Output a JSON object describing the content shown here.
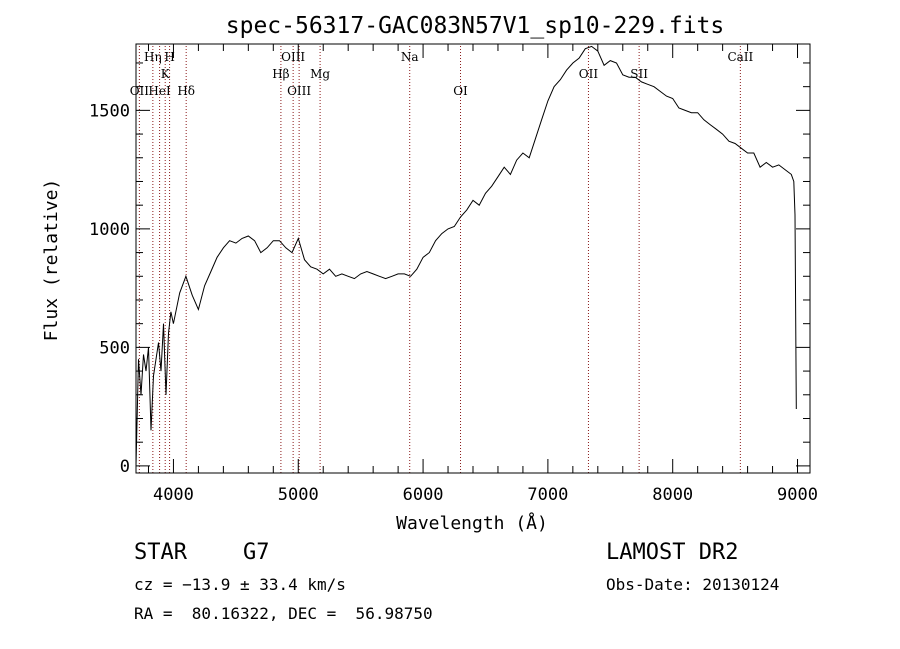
{
  "chart_data": {
    "type": "line",
    "title": "spec-56317-GAC083N57V1_sp10-229.fits",
    "xlabel": "Wavelength (Å)",
    "ylabel": "Flux (relative)",
    "xlim": [
      3700,
      9100
    ],
    "ylim": [
      -30,
      1780
    ],
    "x_ticks": [
      4000,
      5000,
      6000,
      7000,
      8000,
      9000
    ],
    "y_ticks": [
      0,
      500,
      1000,
      1500
    ],
    "grid": false,
    "legend": "none",
    "series": [
      {
        "color": "#000000",
        "x": [
          3700,
          3720,
          3740,
          3760,
          3780,
          3800,
          3820,
          3840,
          3860,
          3880,
          3900,
          3920,
          3940,
          3960,
          3980,
          4000,
          4050,
          4100,
          4150,
          4200,
          4250,
          4300,
          4350,
          4400,
          4450,
          4500,
          4550,
          4600,
          4650,
          4700,
          4750,
          4800,
          4850,
          4900,
          4950,
          5000,
          5050,
          5100,
          5150,
          5200,
          5250,
          5300,
          5350,
          5400,
          5450,
          5500,
          5550,
          5600,
          5650,
          5700,
          5750,
          5800,
          5850,
          5900,
          5950,
          6000,
          6050,
          6100,
          6150,
          6200,
          6250,
          6300,
          6350,
          6400,
          6450,
          6500,
          6550,
          6600,
          6650,
          6700,
          6750,
          6800,
          6850,
          6900,
          6950,
          7000,
          7050,
          7100,
          7150,
          7200,
          7250,
          7300,
          7350,
          7400,
          7450,
          7500,
          7550,
          7600,
          7650,
          7700,
          7750,
          7800,
          7850,
          7900,
          7950,
          8000,
          8050,
          8100,
          8150,
          8200,
          8250,
          8300,
          8350,
          8400,
          8450,
          8500,
          8550,
          8600,
          8650,
          8700,
          8750,
          8800,
          8850,
          8900,
          8950,
          8970,
          8980,
          8990
        ],
        "y": [
          0,
          450,
          300,
          470,
          400,
          500,
          150,
          380,
          450,
          520,
          400,
          600,
          300,
          560,
          650,
          600,
          730,
          800,
          720,
          660,
          760,
          820,
          880,
          920,
          950,
          940,
          960,
          970,
          950,
          900,
          920,
          950,
          950,
          920,
          900,
          960,
          870,
          840,
          830,
          810,
          830,
          800,
          810,
          800,
          790,
          810,
          820,
          810,
          800,
          790,
          800,
          810,
          810,
          800,
          830,
          880,
          900,
          950,
          980,
          1000,
          1010,
          1050,
          1080,
          1120,
          1100,
          1150,
          1180,
          1220,
          1260,
          1230,
          1290,
          1320,
          1300,
          1380,
          1460,
          1540,
          1600,
          1630,
          1670,
          1700,
          1720,
          1760,
          1770,
          1750,
          1690,
          1710,
          1700,
          1650,
          1640,
          1640,
          1620,
          1610,
          1600,
          1580,
          1560,
          1550,
          1510,
          1500,
          1490,
          1490,
          1460,
          1440,
          1420,
          1400,
          1370,
          1360,
          1340,
          1320,
          1320,
          1260,
          1280,
          1260,
          1270,
          1250,
          1230,
          1200,
          1060,
          240
        ]
      }
    ],
    "lines": [
      {
        "label": "OII",
        "wave": 3727,
        "row": 3
      },
      {
        "label": "Hη",
        "wave": 3835,
        "row": 1
      },
      {
        "label": "HeI",
        "wave": 3889,
        "row": 3
      },
      {
        "label": "K",
        "wave": 3934,
        "row": 2
      },
      {
        "label": "H",
        "wave": 3969,
        "row": 1
      },
      {
        "label": "Hδ",
        "wave": 4102,
        "row": 3
      },
      {
        "label": "Hβ",
        "wave": 4861,
        "row": 2
      },
      {
        "label": "OIII",
        "wave": 4959,
        "row": 1
      },
      {
        "label": "OIII",
        "wave": 5007,
        "row": 3
      },
      {
        "label": "Mg",
        "wave": 5175,
        "row": 2
      },
      {
        "label": "Na",
        "wave": 5893,
        "row": 1
      },
      {
        "label": "OI",
        "wave": 6300,
        "row": 3
      },
      {
        "label": "OII",
        "wave": 7325,
        "row": 2
      },
      {
        "label": "SII",
        "wave": 7731,
        "row": 2
      },
      {
        "label": "CaII",
        "wave": 8542,
        "row": 1
      }
    ]
  },
  "info": {
    "object_class": "STAR",
    "subclass": "G7",
    "survey": "LAMOST DR2",
    "redshift": "cz = −13.9 ± 33.4 km/s",
    "obs_date": "Obs-Date: 20130124",
    "coords": "RA =  80.16322, DEC =  56.98750"
  }
}
